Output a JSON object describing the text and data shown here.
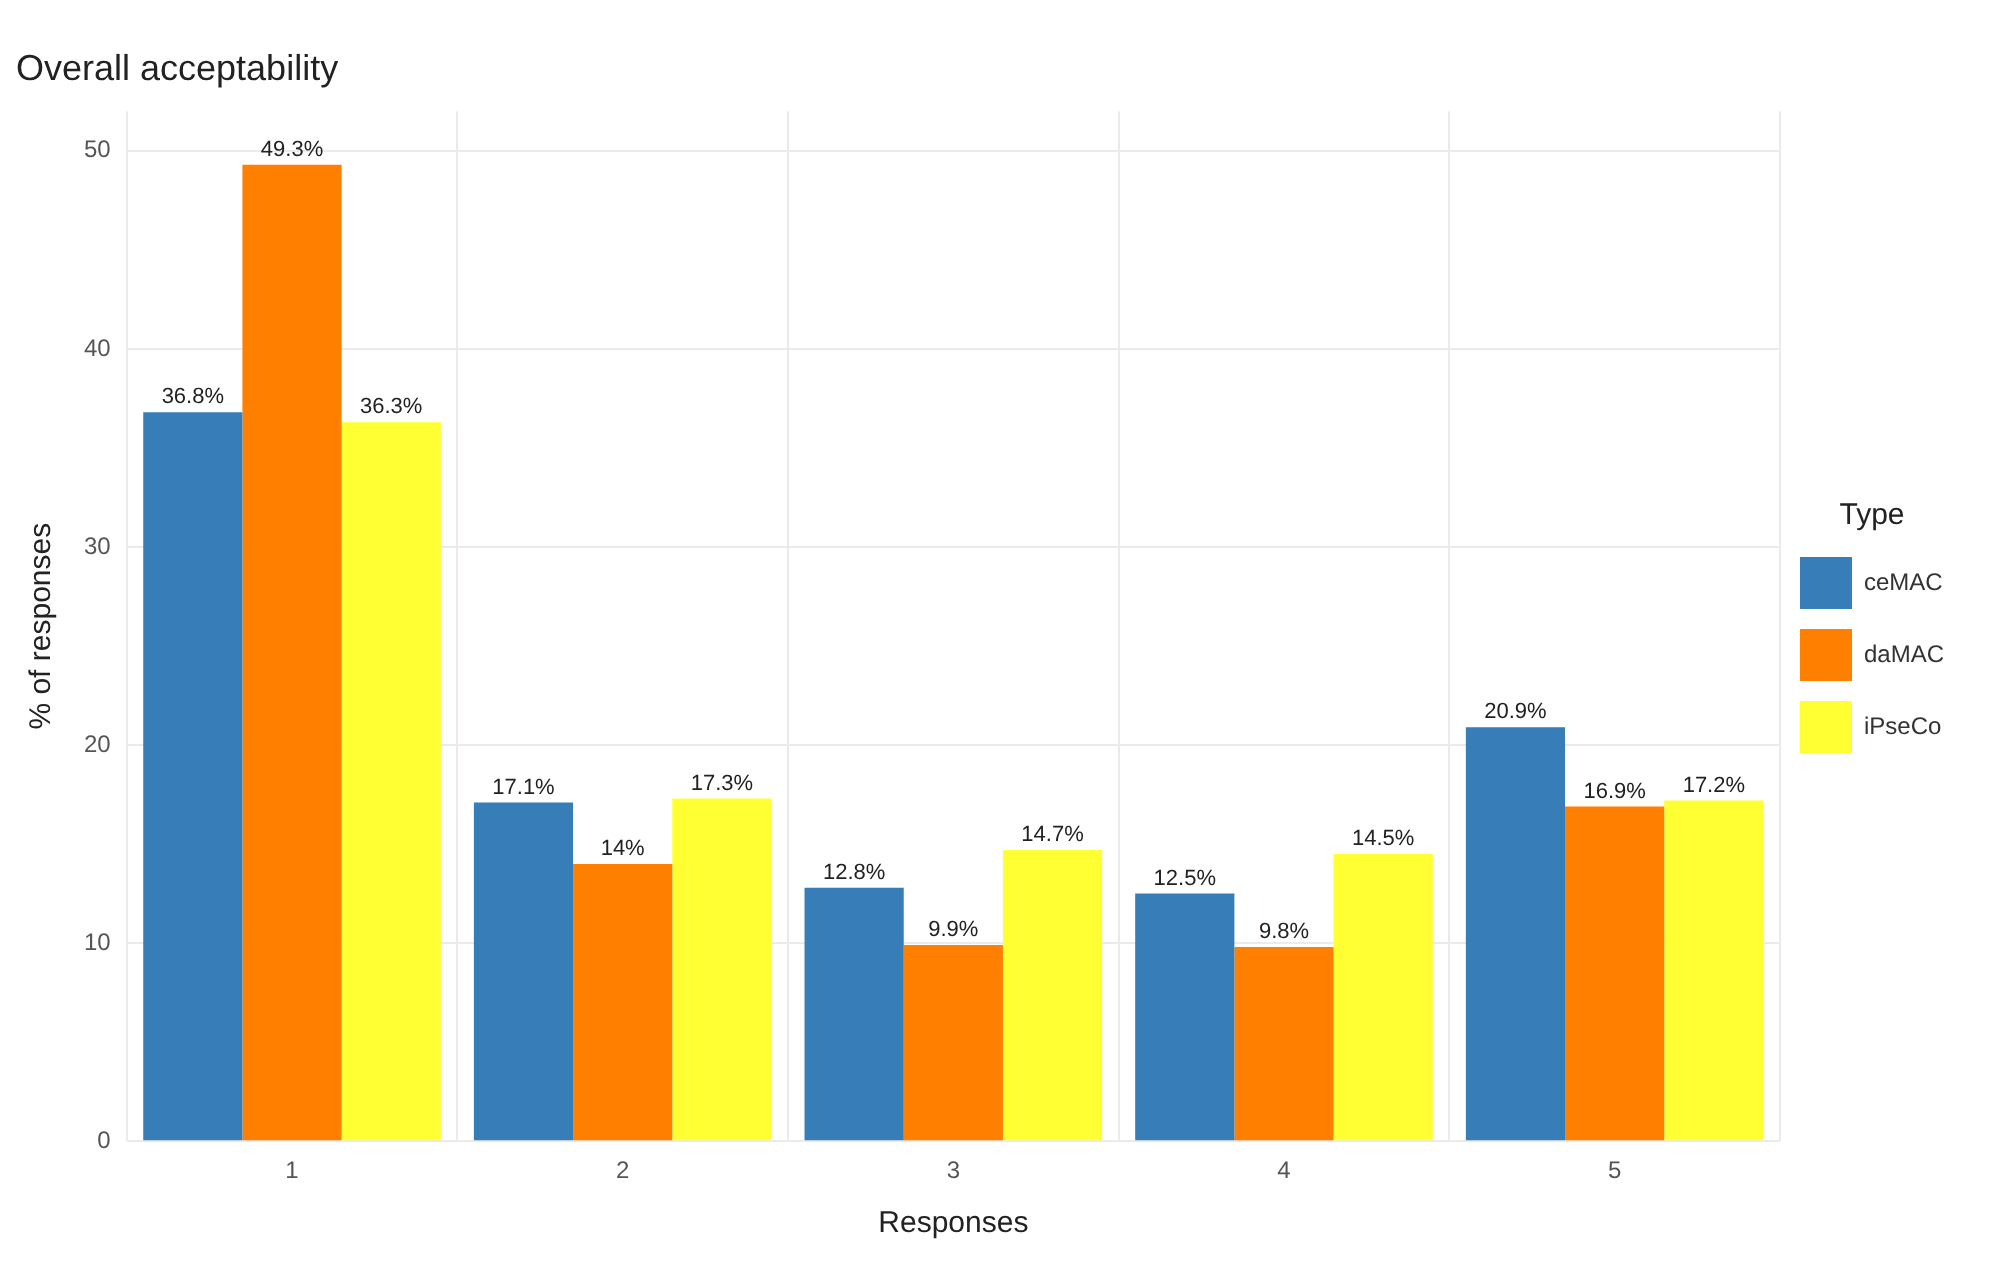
{
  "chart_data": {
    "type": "bar",
    "title": "Overall acceptability",
    "xlabel": "Responses",
    "ylabel": "% of responses",
    "legend_title": "Type",
    "legend": "right",
    "grid": true,
    "categories": [
      "1",
      "2",
      "3",
      "4",
      "5"
    ],
    "ylim": [
      0,
      52
    ],
    "yticks": [
      0,
      10,
      20,
      30,
      40,
      50
    ],
    "series": [
      {
        "name": "ceMAC",
        "color": "#377eb8",
        "values": [
          36.8,
          17.1,
          12.8,
          12.5,
          20.9
        ],
        "value_labels": [
          "36.8%",
          "17.1%",
          "12.8%",
          "12.5%",
          "20.9%"
        ]
      },
      {
        "name": "daMAC",
        "color": "#ff7f00",
        "values": [
          49.3,
          14,
          9.9,
          9.8,
          16.9
        ],
        "value_labels": [
          "49.3%",
          "14%",
          "9.9%",
          "9.8%",
          "16.9%"
        ]
      },
      {
        "name": "iPseCo",
        "color": "#ffff33",
        "values": [
          36.3,
          17.3,
          14.7,
          14.5,
          17.2
        ],
        "value_labels": [
          "36.3%",
          "17.3%",
          "14.7%",
          "14.5%",
          "17.2%"
        ]
      }
    ]
  }
}
